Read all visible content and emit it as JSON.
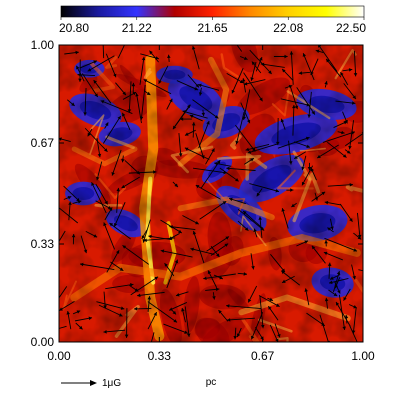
{
  "chart_data": {
    "type": "heatmap",
    "colorbar": {
      "tick_labels": [
        "20.80",
        "21.22",
        "21.65",
        "22.08",
        "22.50"
      ],
      "min": 20.8,
      "max": 22.5,
      "palette": [
        "#000000",
        "#1a1aa0",
        "#3333ff",
        "#b00000",
        "#ff2200",
        "#ff8800",
        "#ffd000",
        "#ffff00",
        "#ffffff"
      ]
    },
    "xlabel": "pc",
    "ylabel": "",
    "xlim": [
      0.0,
      1.0
    ],
    "ylim": [
      0.0,
      1.0
    ],
    "xticks": [
      "0.00",
      "0.33",
      "0.67",
      "1.00"
    ],
    "yticks": [
      "0.00",
      "0.33",
      "0.67",
      "1.00"
    ],
    "vector_scale_label": "1μG",
    "vector_color": "#000000",
    "field_description_note": ""
  }
}
